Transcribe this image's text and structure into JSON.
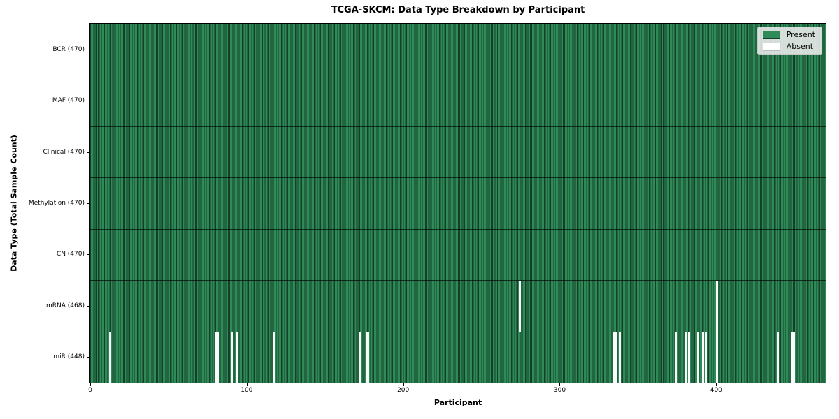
{
  "title": "TCGA-SKCM: Data Type Breakdown by Participant",
  "xlabel": "Participant",
  "ylabel": "Data Type (Total Sample Count)",
  "legend": {
    "present_label": "Present",
    "absent_label": "Absent"
  },
  "colors": {
    "present": "#2e8b57",
    "bar_edge": "#14402a",
    "absent": "#fbfbfb",
    "row_separator": "rgba(0,0,0,0.65)",
    "legend_bg": "#ededed"
  },
  "x_ticks": [
    0,
    100,
    200,
    300,
    400
  ],
  "chart_data": {
    "type": "heatmap",
    "title": "TCGA-SKCM: Data Type Breakdown by Participant",
    "xlabel": "Participant",
    "ylabel": "Data Type (Total Sample Count)",
    "legend_entries": [
      "Present",
      "Absent"
    ],
    "legend_position": "upper right",
    "n_participants": 470,
    "x_range": [
      0,
      470
    ],
    "x_tick_values": [
      0,
      100,
      200,
      300,
      400
    ],
    "rows": [
      {
        "name": "BCR",
        "label": "BCR (470)",
        "total": 470,
        "absent": []
      },
      {
        "name": "MAF",
        "label": "MAF (470)",
        "total": 470,
        "absent": []
      },
      {
        "name": "Clinical",
        "label": "Clinical (470)",
        "total": 470,
        "absent": []
      },
      {
        "name": "Methylation",
        "label": "Methylation (470)",
        "total": 470,
        "absent": []
      },
      {
        "name": "CN",
        "label": "CN (470)",
        "total": 470,
        "absent": []
      },
      {
        "name": "mRNA",
        "label": "mRNA (468)",
        "total": 468,
        "absent": [
          274,
          400
        ]
      },
      {
        "name": "miR",
        "label": "miR (448)",
        "total": 448,
        "absent": [
          12,
          80,
          81,
          90,
          93,
          117,
          172,
          176,
          177,
          334,
          335,
          338,
          374,
          380,
          382,
          388,
          391,
          393,
          400,
          439,
          448,
          449
        ]
      }
    ]
  }
}
